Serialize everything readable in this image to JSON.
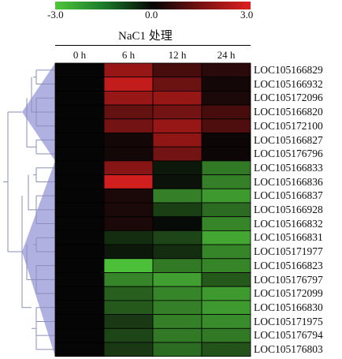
{
  "legend": {
    "min_label": "-3.0",
    "mid_label": "0.0",
    "max_label": "3.0",
    "colors": {
      "low": "#4fc63b",
      "mid": "#050505",
      "high": "#e02020"
    }
  },
  "group_label": "NaC1 处理",
  "chart_data": {
    "type": "heatmap",
    "columns": [
      "0 h",
      "6 h",
      "12 h",
      "24 h"
    ],
    "rows": [
      "LOC105166829",
      "LOC105166932",
      "LOC105172096",
      "LOC105166820",
      "LOC105172100",
      "LOC105166827",
      "LOC105176796",
      "LOC105166833",
      "LOC105166836",
      "LOC105166837",
      "LOC105166928",
      "LOC105166832",
      "LOC105166831",
      "LOC105171977",
      "LOC105166823",
      "LOC105176797",
      "LOC105172099",
      "LOC105166830",
      "LOC105171975",
      "LOC105176794",
      "LOC105176803"
    ],
    "values": [
      [
        0,
        2.0,
        0.9,
        0.5
      ],
      [
        0,
        2.6,
        1.4,
        0.2
      ],
      [
        0,
        2.0,
        2.0,
        0.3
      ],
      [
        0,
        1.3,
        1.5,
        0.9
      ],
      [
        0,
        1.5,
        2.0,
        1.0
      ],
      [
        0,
        0.2,
        1.9,
        0.1
      ],
      [
        0,
        0.2,
        1.5,
        0.1
      ],
      [
        0,
        1.8,
        -0.3,
        -1.8
      ],
      [
        0,
        2.8,
        -0.2,
        -1.9
      ],
      [
        0,
        0.3,
        -1.9,
        -2.3
      ],
      [
        0,
        0.3,
        -0.9,
        -1.6
      ],
      [
        0,
        0.3,
        -0.1,
        -2.0
      ],
      [
        0,
        -0.6,
        -1.0,
        -2.5
      ],
      [
        0,
        -0.3,
        -0.6,
        -2.0
      ],
      [
        0,
        -2.9,
        -1.8,
        -2.0
      ],
      [
        0,
        -2.0,
        -2.4,
        -1.3
      ],
      [
        0,
        -1.4,
        -2.0,
        -2.3
      ],
      [
        0,
        -1.3,
        -1.9,
        -2.3
      ],
      [
        0,
        -0.8,
        -1.9,
        -2.1
      ],
      [
        0,
        -1.0,
        -1.8,
        -1.8
      ],
      [
        0,
        -0.8,
        -1.6,
        -1.2
      ]
    ],
    "range": [
      -3.0,
      3.0
    ]
  }
}
